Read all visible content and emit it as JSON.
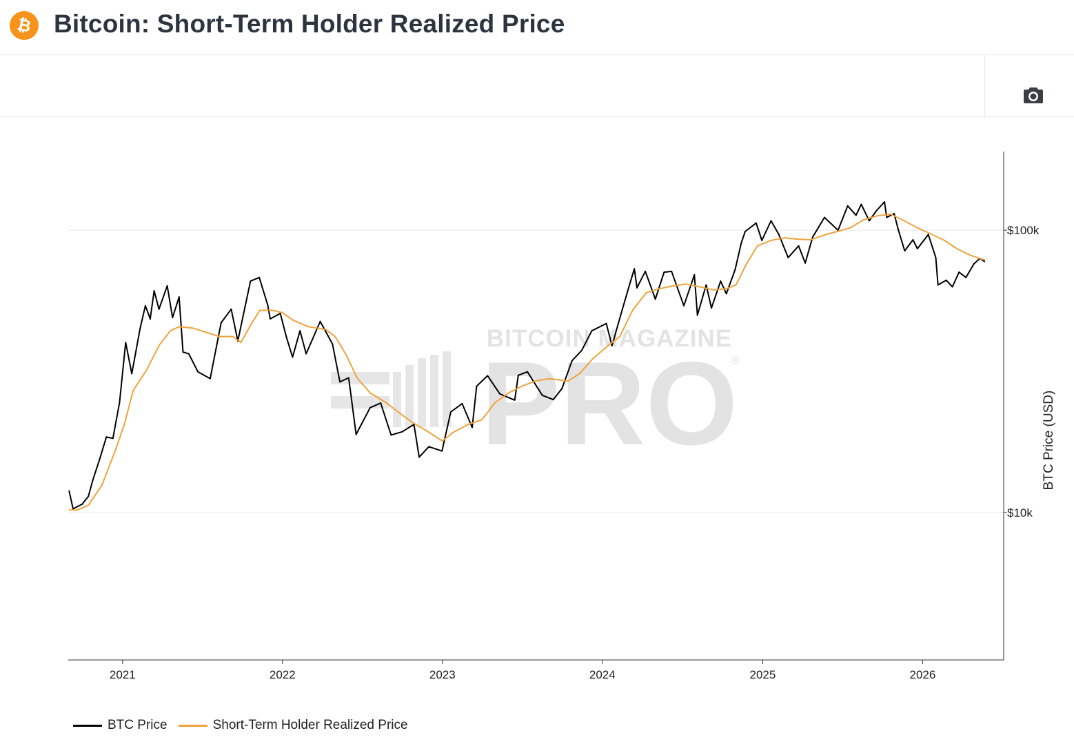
{
  "header": {
    "title": "Bitcoin: Short-Term Holder Realized Price",
    "logo_icon": "bitcoin-logo-icon",
    "logo_color": "#F7931A"
  },
  "toolbar": {
    "screenshot_icon": "camera-icon"
  },
  "watermark": {
    "line1": "BITCOIN MAGAZINE",
    "line2": "PRO",
    "mark": "®"
  },
  "legend": {
    "items": [
      {
        "label": "BTC Price",
        "color": "#000000"
      },
      {
        "label": "Short-Term Holder Realized Price",
        "color": "#F0A23A"
      }
    ]
  },
  "chart_data": {
    "type": "line",
    "title": "Bitcoin: Short-Term Holder Realized Price",
    "xlabel": "",
    "ylabel": "BTC Price (USD)",
    "y_scale": "log",
    "ylim": [
      3000,
      190000
    ],
    "xlim": [
      "2020-08-30",
      "2026-07-05"
    ],
    "x_ticks": [
      "2021",
      "2022",
      "2023",
      "2024",
      "2025",
      "2026"
    ],
    "y_ticks": [
      {
        "value": 10000,
        "label": "$10k"
      },
      {
        "value": 100000,
        "label": "$100k"
      }
    ],
    "grid": "horizontal",
    "legend_position": "bottom-left",
    "series": [
      {
        "name": "BTC Price",
        "color": "#000000",
        "points": [
          [
            "2020-09-01",
            11900
          ],
          [
            "2020-09-10",
            10300
          ],
          [
            "2020-10-01",
            10700
          ],
          [
            "2020-10-15",
            11400
          ],
          [
            "2020-10-25",
            13000
          ],
          [
            "2020-11-10",
            15500
          ],
          [
            "2020-11-25",
            18500
          ],
          [
            "2020-12-10",
            18300
          ],
          [
            "2020-12-25",
            24500
          ],
          [
            "2021-01-08",
            40000
          ],
          [
            "2021-01-22",
            31000
          ],
          [
            "2021-02-10",
            44800
          ],
          [
            "2021-02-22",
            54000
          ],
          [
            "2021-03-05",
            48500
          ],
          [
            "2021-03-14",
            61000
          ],
          [
            "2021-03-25",
            52500
          ],
          [
            "2021-04-13",
            63500
          ],
          [
            "2021-04-25",
            49000
          ],
          [
            "2021-05-10",
            58000
          ],
          [
            "2021-05-19",
            37000
          ],
          [
            "2021-06-01",
            36500
          ],
          [
            "2021-06-22",
            31500
          ],
          [
            "2021-07-20",
            29800
          ],
          [
            "2021-08-14",
            47000
          ],
          [
            "2021-09-06",
            52500
          ],
          [
            "2021-09-21",
            40500
          ],
          [
            "2021-10-08",
            54000
          ],
          [
            "2021-10-20",
            66000
          ],
          [
            "2021-11-09",
            68000
          ],
          [
            "2021-11-28",
            54500
          ],
          [
            "2021-12-04",
            48500
          ],
          [
            "2021-12-27",
            50700
          ],
          [
            "2022-01-10",
            41800
          ],
          [
            "2022-01-24",
            35500
          ],
          [
            "2022-02-10",
            44000
          ],
          [
            "2022-02-24",
            36500
          ],
          [
            "2022-03-28",
            47500
          ],
          [
            "2022-04-25",
            39500
          ],
          [
            "2022-05-12",
            29000
          ],
          [
            "2022-06-01",
            30000
          ],
          [
            "2022-06-18",
            18900
          ],
          [
            "2022-07-20",
            23500
          ],
          [
            "2022-08-13",
            24400
          ],
          [
            "2022-09-06",
            18800
          ],
          [
            "2022-10-01",
            19300
          ],
          [
            "2022-10-28",
            20500
          ],
          [
            "2022-11-09",
            15700
          ],
          [
            "2022-12-01",
            17100
          ],
          [
            "2022-12-31",
            16500
          ],
          [
            "2023-01-20",
            22700
          ],
          [
            "2023-02-15",
            24300
          ],
          [
            "2023-03-10",
            20000
          ],
          [
            "2023-03-20",
            28000
          ],
          [
            "2023-04-14",
            30500
          ],
          [
            "2023-05-12",
            26300
          ],
          [
            "2023-06-15",
            25000
          ],
          [
            "2023-06-23",
            30600
          ],
          [
            "2023-07-14",
            31500
          ],
          [
            "2023-08-17",
            26000
          ],
          [
            "2023-09-11",
            25100
          ],
          [
            "2023-10-01",
            27500
          ],
          [
            "2023-10-24",
            34500
          ],
          [
            "2023-11-15",
            37500
          ],
          [
            "2023-12-08",
            44000
          ],
          [
            "2024-01-10",
            46700
          ],
          [
            "2024-01-23",
            39000
          ],
          [
            "2024-02-15",
            52000
          ],
          [
            "2024-03-01",
            62500
          ],
          [
            "2024-03-14",
            73000
          ],
          [
            "2024-03-20",
            62500
          ],
          [
            "2024-04-08",
            71500
          ],
          [
            "2024-05-01",
            57000
          ],
          [
            "2024-05-21",
            71000
          ],
          [
            "2024-06-07",
            71500
          ],
          [
            "2024-07-05",
            54000
          ],
          [
            "2024-07-29",
            69500
          ],
          [
            "2024-08-05",
            50000
          ],
          [
            "2024-08-25",
            64000
          ],
          [
            "2024-09-06",
            53000
          ],
          [
            "2024-09-27",
            66000
          ],
          [
            "2024-10-10",
            59500
          ],
          [
            "2024-10-30",
            72500
          ],
          [
            "2024-11-13",
            90000
          ],
          [
            "2024-11-22",
            99000
          ],
          [
            "2024-12-17",
            106000
          ],
          [
            "2024-12-30",
            92000
          ],
          [
            "2025-01-20",
            108000
          ],
          [
            "2025-02-07",
            96500
          ],
          [
            "2025-02-28",
            80000
          ],
          [
            "2025-03-24",
            88000
          ],
          [
            "2025-04-08",
            76500
          ],
          [
            "2025-04-25",
            94500
          ],
          [
            "2025-05-22",
            111000
          ],
          [
            "2025-06-22",
            100000
          ],
          [
            "2025-07-14",
            122000
          ],
          [
            "2025-08-02",
            113000
          ],
          [
            "2025-08-14",
            123500
          ],
          [
            "2025-09-01",
            108000
          ],
          [
            "2025-09-18",
            117500
          ],
          [
            "2025-10-06",
            126000
          ],
          [
            "2025-10-11",
            111000
          ],
          [
            "2025-10-28",
            114500
          ],
          [
            "2025-11-06",
            101000
          ],
          [
            "2025-11-21",
            84500
          ],
          [
            "2025-12-10",
            92500
          ],
          [
            "2025-12-20",
            86000
          ],
          [
            "2026-01-14",
            96500
          ],
          [
            "2026-01-31",
            80000
          ],
          [
            "2026-02-05",
            64000
          ],
          [
            "2026-02-24",
            66500
          ],
          [
            "2026-03-10",
            63000
          ],
          [
            "2026-03-25",
            71000
          ],
          [
            "2026-04-10",
            68000
          ],
          [
            "2026-04-28",
            76000
          ],
          [
            "2026-05-12",
            79500
          ],
          [
            "2026-05-22",
            77500
          ]
        ]
      },
      {
        "name": "Short-Term Holder Realized Price",
        "color": "#F0A23A",
        "points": [
          [
            "2020-09-01",
            10200
          ],
          [
            "2020-09-20",
            10200
          ],
          [
            "2020-10-15",
            10600
          ],
          [
            "2020-11-15",
            12500
          ],
          [
            "2020-12-15",
            16500
          ],
          [
            "2021-01-05",
            20500
          ],
          [
            "2021-01-25",
            27000
          ],
          [
            "2021-02-25",
            32000
          ],
          [
            "2021-03-25",
            39000
          ],
          [
            "2021-04-20",
            44000
          ],
          [
            "2021-05-10",
            45500
          ],
          [
            "2021-06-10",
            45000
          ],
          [
            "2021-07-10",
            43500
          ],
          [
            "2021-08-10",
            42000
          ],
          [
            "2021-09-10",
            42000
          ],
          [
            "2021-09-28",
            40000
          ],
          [
            "2021-10-20",
            46000
          ],
          [
            "2021-11-10",
            52000
          ],
          [
            "2021-12-10",
            52000
          ],
          [
            "2022-01-01",
            51000
          ],
          [
            "2022-01-25",
            48000
          ],
          [
            "2022-03-01",
            45500
          ],
          [
            "2022-04-10",
            44500
          ],
          [
            "2022-05-01",
            42000
          ],
          [
            "2022-05-25",
            36500
          ],
          [
            "2022-06-20",
            30000
          ],
          [
            "2022-07-20",
            26500
          ],
          [
            "2022-08-25",
            24500
          ],
          [
            "2022-09-25",
            22500
          ],
          [
            "2022-10-25",
            20800
          ],
          [
            "2022-11-25",
            19500
          ],
          [
            "2023-01-01",
            17900
          ],
          [
            "2023-01-25",
            19200
          ],
          [
            "2023-03-01",
            20500
          ],
          [
            "2023-04-01",
            21300
          ],
          [
            "2023-05-01",
            24500
          ],
          [
            "2023-06-01",
            26500
          ],
          [
            "2023-07-01",
            28000
          ],
          [
            "2023-08-01",
            29200
          ],
          [
            "2023-09-01",
            29800
          ],
          [
            "2023-10-15",
            29200
          ],
          [
            "2023-11-10",
            31000
          ],
          [
            "2023-12-10",
            35000
          ],
          [
            "2024-01-10",
            38500
          ],
          [
            "2024-02-10",
            42000
          ],
          [
            "2024-03-10",
            52000
          ],
          [
            "2024-04-10",
            60000
          ],
          [
            "2024-05-10",
            62000
          ],
          [
            "2024-06-10",
            63500
          ],
          [
            "2024-07-10",
            64500
          ],
          [
            "2024-08-10",
            63000
          ],
          [
            "2024-09-10",
            61500
          ],
          [
            "2024-10-10",
            62000
          ],
          [
            "2024-11-01",
            64000
          ],
          [
            "2024-11-25",
            76000
          ],
          [
            "2024-12-20",
            88000
          ],
          [
            "2025-01-20",
            92000
          ],
          [
            "2025-02-20",
            94000
          ],
          [
            "2025-03-20",
            93000
          ],
          [
            "2025-04-20",
            92500
          ],
          [
            "2025-05-20",
            96000
          ],
          [
            "2025-06-20",
            99000
          ],
          [
            "2025-07-20",
            102000
          ],
          [
            "2025-08-20",
            109000
          ],
          [
            "2025-09-20",
            112500
          ],
          [
            "2025-10-20",
            114000
          ],
          [
            "2025-11-20",
            108000
          ],
          [
            "2025-12-20",
            102000
          ],
          [
            "2026-01-20",
            97000
          ],
          [
            "2026-02-20",
            92000
          ],
          [
            "2026-03-20",
            86000
          ],
          [
            "2026-04-20",
            81500
          ],
          [
            "2026-05-22",
            78500
          ]
        ]
      }
    ]
  }
}
